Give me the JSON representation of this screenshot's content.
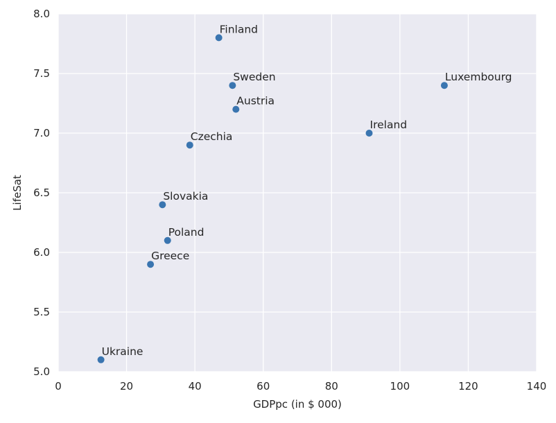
{
  "chart_data": {
    "type": "scatter",
    "xlabel": "GDPpc (in $ 000)",
    "ylabel": "LifeSat",
    "xlim": [
      0,
      140
    ],
    "ylim": [
      5.0,
      8.0
    ],
    "x_ticks": [
      0,
      20,
      40,
      60,
      80,
      100,
      120,
      140
    ],
    "x_tick_labels": [
      "0",
      "20",
      "40",
      "60",
      "80",
      "100",
      "120",
      "140"
    ],
    "y_ticks": [
      5.0,
      5.5,
      6.0,
      6.5,
      7.0,
      7.5,
      8.0
    ],
    "y_tick_labels": [
      "5.0",
      "5.5",
      "6.0",
      "6.5",
      "7.0",
      "7.5",
      "8.0"
    ],
    "grid": true,
    "background_color": "#eaeaf2",
    "grid_color": "#ffffff",
    "point_color": "#3a75b0",
    "points": [
      {
        "label": "Finland",
        "x": 47.0,
        "y": 7.8
      },
      {
        "label": "Sweden",
        "x": 51.0,
        "y": 7.4
      },
      {
        "label": "Austria",
        "x": 52.0,
        "y": 7.2
      },
      {
        "label": "Luxembourg",
        "x": 113.0,
        "y": 7.4
      },
      {
        "label": "Ireland",
        "x": 91.0,
        "y": 7.0
      },
      {
        "label": "Czechia",
        "x": 38.5,
        "y": 6.9
      },
      {
        "label": "Slovakia",
        "x": 30.5,
        "y": 6.4
      },
      {
        "label": "Poland",
        "x": 32.0,
        "y": 6.1
      },
      {
        "label": "Greece",
        "x": 27.0,
        "y": 5.9
      },
      {
        "label": "Ukraine",
        "x": 12.5,
        "y": 5.1
      }
    ]
  }
}
